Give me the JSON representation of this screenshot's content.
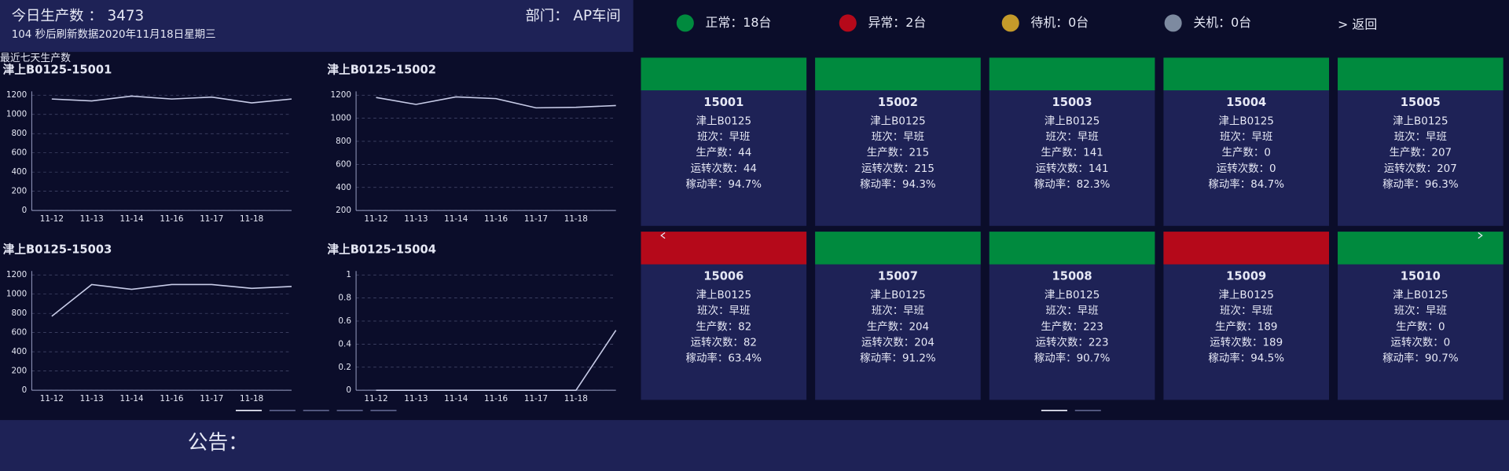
{
  "header": {
    "production_today": "今日生产数 ： 3473",
    "department": "部门： AP车间",
    "refresh": "104 秒后刷新数据2020年11月18日星期三"
  },
  "status_legend": [
    {
      "label": "正常：18台",
      "color": "#008a3e"
    },
    {
      "label": "异常：2台",
      "color": "#b5091a"
    },
    {
      "label": "待机：0台",
      "color": "#c49a2a"
    },
    {
      "label": "关机：0台",
      "color": "#7d8aa0"
    }
  ],
  "back": "> 返回",
  "section_title": "最近七天生产数",
  "chart_data": [
    {
      "type": "line",
      "title": "津上B0125-15001",
      "color": "#c8cce8",
      "grid": true,
      "categories": [
        "11-12",
        "11-13",
        "11-14",
        "11-16",
        "11-17",
        "11-18",
        null
      ],
      "values": [
        1160,
        1140,
        1190,
        1160,
        1180,
        1120,
        1160
      ],
      "ylim": [
        0,
        1200
      ],
      "yticks": [
        0,
        200,
        400,
        600,
        800,
        1000,
        1200
      ]
    },
    {
      "type": "line",
      "title": "津上B0125-15002",
      "color": "#c8cce8",
      "grid": true,
      "categories": [
        "11-12",
        "11-13",
        "11-14",
        "11-16",
        "11-17",
        "11-18",
        null
      ],
      "values": [
        1180,
        1120,
        1185,
        1170,
        1090,
        1095,
        1110
      ],
      "ylim": [
        200,
        1200
      ],
      "yticks": [
        200,
        400,
        600,
        800,
        1000,
        1200
      ]
    },
    {
      "type": "line",
      "title": "津上B0125-15003",
      "color": "#c8cce8",
      "grid": true,
      "categories": [
        "11-12",
        "11-13",
        "11-14",
        "11-16",
        "11-17",
        "11-18",
        null
      ],
      "values": [
        770,
        1100,
        1050,
        1100,
        1100,
        1060,
        1080
      ],
      "ylim": [
        0,
        1200
      ],
      "yticks": [
        0,
        200,
        400,
        600,
        800,
        1000,
        1200
      ]
    },
    {
      "type": "line",
      "title": "津上B0125-15004",
      "color": "#c8cce8",
      "grid": true,
      "categories": [
        "11-12",
        "11-13",
        "11-14",
        "11-16",
        "11-17",
        "11-18",
        null
      ],
      "values": [
        0,
        0,
        0,
        0,
        0,
        0,
        0.52
      ],
      "ylim": [
        0,
        1
      ],
      "yticks": [
        0,
        0.2,
        0.4,
        0.6,
        0.8,
        1
      ]
    }
  ],
  "machines": [
    {
      "id": "15001",
      "color": "#008a3e",
      "lines": [
        "津上B0125",
        "班次：早班",
        "生产数：44",
        "运转次数：44",
        "稼动率：94.7%"
      ]
    },
    {
      "id": "15002",
      "color": "#008a3e",
      "lines": [
        "津上B0125",
        "班次：早班",
        "生产数：215",
        "运转次数：215",
        "稼动率：94.3%"
      ]
    },
    {
      "id": "15003",
      "color": "#008a3e",
      "lines": [
        "津上B0125",
        "班次：早班",
        "生产数：141",
        "运转次数：141",
        "稼动率：82.3%"
      ]
    },
    {
      "id": "15004",
      "color": "#008a3e",
      "lines": [
        "津上B0125",
        "班次：早班",
        "生产数：0",
        "运转次数：0",
        "稼动率：84.7%"
      ]
    },
    {
      "id": "15005",
      "color": "#008a3e",
      "lines": [
        "津上B0125",
        "班次：早班",
        "生产数：207",
        "运转次数：207",
        "稼动率：96.3%"
      ]
    },
    {
      "id": "15006",
      "color": "#b5091a",
      "lines": [
        "津上B0125",
        "班次：早班",
        "生产数：82",
        "运转次数：82",
        "稼动率：63.4%"
      ]
    },
    {
      "id": "15007",
      "color": "#008a3e",
      "lines": [
        "津上B0125",
        "班次：早班",
        "生产数：204",
        "运转次数：204",
        "稼动率：91.2%"
      ]
    },
    {
      "id": "15008",
      "color": "#008a3e",
      "lines": [
        "津上B0125",
        "班次：早班",
        "生产数：223",
        "运转次数：223",
        "稼动率：90.7%"
      ]
    },
    {
      "id": "15009",
      "color": "#b5091a",
      "lines": [
        "津上B0125",
        "班次：早班",
        "生产数：189",
        "运转次数：189",
        "稼动率：94.5%"
      ]
    },
    {
      "id": "15010",
      "color": "#008a3e",
      "lines": [
        "津上B0125",
        "班次：早班",
        "生产数：0",
        "运转次数：0",
        "稼动率：90.7%"
      ]
    }
  ],
  "notice_label": "公告："
}
